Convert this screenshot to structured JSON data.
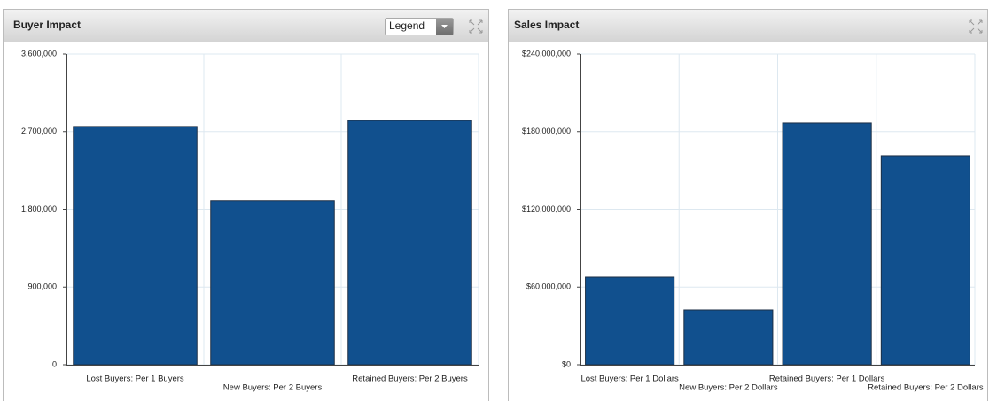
{
  "controls": {
    "legend_dropdown": "Legend"
  },
  "chart_data": [
    {
      "type": "bar",
      "title": "Buyer Impact",
      "categories": [
        "Lost Buyers: Per 1 Buyers",
        "New Buyers: Per 2 Buyers",
        "Retained Buyers: Per 2 Buyers"
      ],
      "values": [
        2760000,
        1900000,
        2830000
      ],
      "color": "#11508e",
      "ylim": [
        0,
        3600000
      ],
      "yticks": [
        0,
        {
          "value": 900000,
          "label": "900,000"
        },
        {
          "value": 1800000,
          "label": "1,800,000"
        },
        {
          "value": 2700000,
          "label": "2,700,000"
        },
        {
          "value": 3600000,
          "label": "3,600,000"
        }
      ],
      "grid": true
    },
    {
      "type": "bar",
      "title": "Sales Impact",
      "categories": [
        "Lost Buyers: Per 1 Dollars",
        "New Buyers: Per 2 Dollars",
        "Retained Buyers: Per 1 Dollars",
        "Retained Buyers: Per 2 Dollars"
      ],
      "values": [
        67700000,
        42400000,
        186700000,
        161400000
      ],
      "color": "#11508e",
      "ylim": [
        0,
        240000000
      ],
      "yticks": [
        {
          "value": 0,
          "label": "$0"
        },
        {
          "value": 60000000,
          "label": "$60,000,000"
        },
        {
          "value": 120000000,
          "label": "$120,000,000"
        },
        {
          "value": 180000000,
          "label": "$180,000,000"
        },
        {
          "value": 240000000,
          "label": "$240,000,000"
        }
      ],
      "grid": true
    }
  ]
}
